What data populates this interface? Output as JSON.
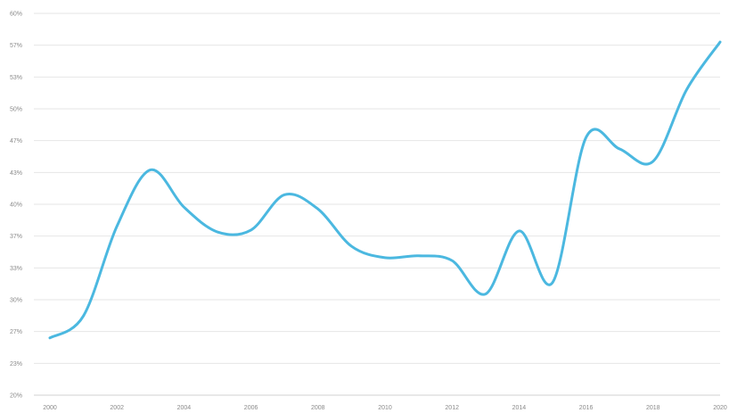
{
  "chart_data": {
    "type": "line",
    "title": "",
    "xlabel": "",
    "ylabel": "",
    "xlim": [
      2000,
      2020
    ],
    "ylim": [
      20,
      60
    ],
    "grid": true,
    "legend": "none",
    "y_ticks": [
      "60%",
      "57%",
      "53%",
      "50%",
      "47%",
      "43%",
      "40%",
      "37%",
      "33%",
      "30%",
      "27%",
      "23%",
      "20%"
    ],
    "x_ticks": [
      "2000",
      "2002",
      "2004",
      "2006",
      "2008",
      "2010",
      "2012",
      "2014",
      "2016",
      "2018",
      "2020"
    ],
    "series": [
      {
        "color": "#4bb8e0",
        "x": [
          2000,
          2001,
          2002,
          2003,
          2004,
          2005,
          2006,
          2007,
          2008,
          2009,
          2010,
          2011,
          2012,
          2013,
          2014,
          2015,
          2016,
          2017,
          2018,
          2019,
          2020
        ],
        "values": [
          26.0,
          28.3,
          37.7,
          43.6,
          39.7,
          37.1,
          37.3,
          41.0,
          39.5,
          35.6,
          34.4,
          34.6,
          34.1,
          30.6,
          37.2,
          31.8,
          47.0,
          45.8,
          44.5,
          52.0,
          57.0
        ]
      }
    ]
  }
}
